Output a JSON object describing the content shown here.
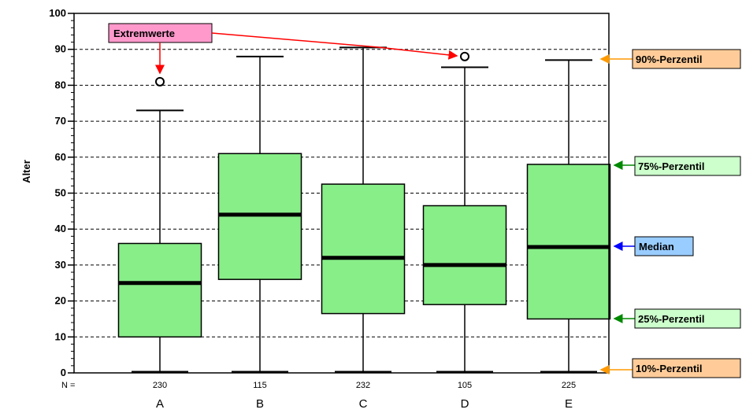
{
  "chart_data": {
    "type": "box",
    "ylabel": "Alter",
    "ylim": [
      0,
      100
    ],
    "yticks": [
      0,
      10,
      20,
      30,
      40,
      50,
      60,
      70,
      80,
      90,
      100
    ],
    "grid": "horizontal-dashed",
    "n_label": "N =",
    "categories": [
      "A",
      "B",
      "C",
      "D",
      "E"
    ],
    "n": [
      "230",
      "115",
      "232",
      "105",
      "225"
    ],
    "box_color": "#88ee88",
    "boxes": [
      {
        "category": "A",
        "p10": 0,
        "q1": 10,
        "median": 25,
        "q3": 36,
        "p90": 73,
        "outliers": [
          81
        ]
      },
      {
        "category": "B",
        "p10": 0,
        "q1": 26,
        "median": 44,
        "q3": 61,
        "p90": 88,
        "outliers": []
      },
      {
        "category": "C",
        "p10": 0,
        "q1": 16.5,
        "median": 32,
        "q3": 52.5,
        "p90": 90.5,
        "outliers": []
      },
      {
        "category": "D",
        "p10": 0,
        "q1": 19,
        "median": 30,
        "q3": 46.5,
        "p90": 85,
        "outliers": [
          88
        ]
      },
      {
        "category": "E",
        "p10": 0,
        "q1": 15,
        "median": 35,
        "q3": 58,
        "p90": 87,
        "outliers": []
      }
    ],
    "annotations": {
      "extremwerte": {
        "text": "Extremwerte",
        "bg": "#ff99cc",
        "arrow_color": "#ff0000"
      },
      "p90": {
        "text": "90%-Perzentil",
        "bg": "#ffcc99",
        "arrow_color": "#ff9900"
      },
      "p75": {
        "text": "75%-Perzentil",
        "bg": "#ccffcc",
        "arrow_color": "#008800"
      },
      "median": {
        "text": "Median",
        "bg": "#99ccff",
        "arrow_color": "#0000ff"
      },
      "p25": {
        "text": "25%-Perzentil",
        "bg": "#ccffcc",
        "arrow_color": "#008800"
      },
      "p10": {
        "text": "10%-Perzentil",
        "bg": "#ffcc99",
        "arrow_color": "#ff9900"
      }
    }
  }
}
